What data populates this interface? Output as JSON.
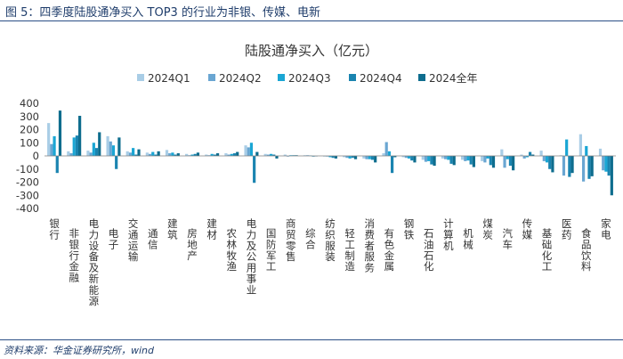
{
  "figure_caption": "图 5：四季度陆股通净买入 TOP3 的行业为非银、传媒、电新",
  "source_note": "资料来源：华金证券研究所，wind",
  "colors": {
    "header_text": "#1f3d6b",
    "rule": "#2b4f86",
    "series": [
      "#a9cde6",
      "#6aa6d2",
      "#1aa6d4",
      "#1a84b0",
      "#0e6d8e"
    ]
  },
  "chart_data": {
    "type": "bar",
    "title": "陆股通净买入（亿元）",
    "legend_position": "top",
    "grid": false,
    "ylim": [
      -400,
      400
    ],
    "yticks": [
      400,
      300,
      200,
      100,
      0,
      -100,
      -200,
      -300,
      -400
    ],
    "categories": [
      "银行",
      "非银行金融",
      "电力设备及新能源",
      "电子",
      "交通运输",
      "通信",
      "建筑",
      "房地产",
      "建材",
      "农林牧渔",
      "电力及公用事业",
      "国防军工",
      "商贸零售",
      "综合",
      "纺织服装",
      "轻工制造",
      "消费者服务",
      "有色金属",
      "钢铁",
      "石油石化",
      "计算机",
      "机械",
      "煤炭",
      "汽车",
      "传媒",
      "基础化工",
      "医药",
      "食品饮料",
      "家电"
    ],
    "series": [
      {
        "name": "2024Q1",
        "values": [
          250,
          35,
          40,
          150,
          35,
          25,
          45,
          15,
          10,
          20,
          80,
          15,
          10,
          5,
          -5,
          -10,
          -20,
          20,
          -10,
          -30,
          -20,
          -30,
          -40,
          50,
          10,
          40,
          5,
          165,
          55
        ]
      },
      {
        "name": "2024Q2",
        "values": [
          90,
          20,
          25,
          110,
          25,
          15,
          20,
          5,
          5,
          10,
          65,
          10,
          -5,
          5,
          -5,
          -15,
          -25,
          105,
          -15,
          -45,
          -25,
          -40,
          -50,
          -90,
          -20,
          -40,
          -150,
          -195,
          -110
        ]
      },
      {
        "name": "2024Q3",
        "values": [
          150,
          140,
          100,
          80,
          60,
          30,
          25,
          10,
          15,
          15,
          100,
          15,
          5,
          3,
          -10,
          -20,
          -25,
          35,
          -20,
          -40,
          -30,
          -35,
          -20,
          -25,
          -10,
          -50,
          125,
          75,
          -120
        ]
      },
      {
        "name": "2024Q4",
        "values": [
          -130,
          155,
          60,
          -100,
          10,
          10,
          10,
          15,
          10,
          20,
          -205,
          10,
          5,
          -5,
          -15,
          -15,
          -30,
          -130,
          -35,
          -65,
          -60,
          -65,
          -70,
          -75,
          30,
          -100,
          -160,
          -175,
          -150
        ]
      },
      {
        "name": "2024全年",
        "values": [
          345,
          305,
          180,
          140,
          50,
          35,
          20,
          25,
          20,
          30,
          30,
          -20,
          5,
          -3,
          -20,
          -25,
          -50,
          -10,
          -50,
          -75,
          -70,
          -85,
          -90,
          -110,
          10,
          -125,
          -130,
          -155,
          -300
        ]
      }
    ]
  }
}
